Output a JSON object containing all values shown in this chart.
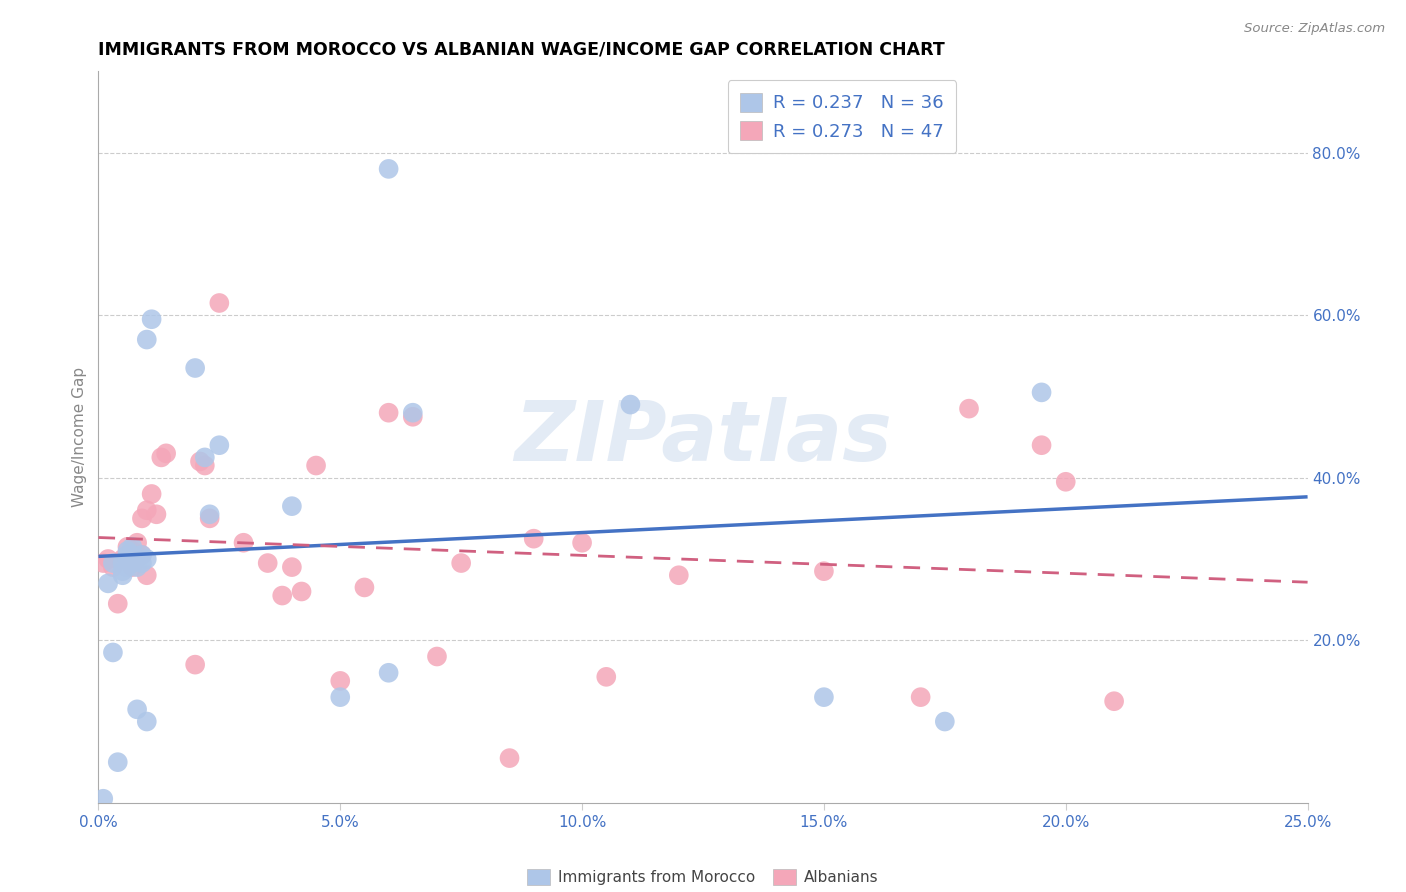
{
  "title": "IMMIGRANTS FROM MOROCCO VS ALBANIAN WAGE/INCOME GAP CORRELATION CHART",
  "source": "Source: ZipAtlas.com",
  "ylabel": "Wage/Income Gap",
  "ytick_vals": [
    0.2,
    0.4,
    0.6,
    0.8
  ],
  "ytick_labels": [
    "20.0%",
    "40.0%",
    "60.0%",
    "80.0%"
  ],
  "xtick_vals": [
    0.0,
    0.05,
    0.1,
    0.15,
    0.2,
    0.25
  ],
  "xtick_labels": [
    "0.0%",
    "5.0%",
    "10.0%",
    "15.0%",
    "20.0%",
    "25.0%"
  ],
  "legend_label1": "Immigrants from Morocco",
  "legend_label2": "Albanians",
  "legend_R1": "R = 0.237",
  "legend_N1": "N = 36",
  "legend_R2": "R = 0.273",
  "legend_N2": "N = 47",
  "color_blue": "#aec6e8",
  "color_pink": "#f4a7b9",
  "line_blue": "#4472c4",
  "line_pink": "#d06080",
  "watermark": "ZIPatlas",
  "blue_x": [
    0.001,
    0.002,
    0.003,
    0.003,
    0.004,
    0.005,
    0.005,
    0.005,
    0.006,
    0.006,
    0.006,
    0.006,
    0.007,
    0.007,
    0.007,
    0.008,
    0.008,
    0.009,
    0.009,
    0.01,
    0.01,
    0.01,
    0.011,
    0.02,
    0.022,
    0.023,
    0.025,
    0.04,
    0.05,
    0.06,
    0.06,
    0.065,
    0.11,
    0.15,
    0.175,
    0.195
  ],
  "blue_y": [
    0.005,
    0.27,
    0.185,
    0.295,
    0.05,
    0.28,
    0.285,
    0.295,
    0.29,
    0.3,
    0.305,
    0.31,
    0.295,
    0.305,
    0.315,
    0.115,
    0.29,
    0.295,
    0.305,
    0.1,
    0.3,
    0.57,
    0.595,
    0.535,
    0.425,
    0.355,
    0.44,
    0.365,
    0.13,
    0.16,
    0.78,
    0.48,
    0.49,
    0.13,
    0.1,
    0.505
  ],
  "pink_x": [
    0.001,
    0.002,
    0.003,
    0.004,
    0.005,
    0.006,
    0.006,
    0.007,
    0.007,
    0.008,
    0.008,
    0.009,
    0.009,
    0.01,
    0.01,
    0.011,
    0.012,
    0.013,
    0.014,
    0.02,
    0.021,
    0.022,
    0.023,
    0.025,
    0.03,
    0.035,
    0.038,
    0.04,
    0.042,
    0.045,
    0.05,
    0.055,
    0.06,
    0.065,
    0.07,
    0.075,
    0.085,
    0.09,
    0.1,
    0.105,
    0.12,
    0.15,
    0.17,
    0.18,
    0.195,
    0.2,
    0.21
  ],
  "pink_y": [
    0.295,
    0.3,
    0.29,
    0.245,
    0.3,
    0.305,
    0.315,
    0.29,
    0.31,
    0.3,
    0.32,
    0.305,
    0.35,
    0.36,
    0.28,
    0.38,
    0.355,
    0.425,
    0.43,
    0.17,
    0.42,
    0.415,
    0.35,
    0.615,
    0.32,
    0.295,
    0.255,
    0.29,
    0.26,
    0.415,
    0.15,
    0.265,
    0.48,
    0.475,
    0.18,
    0.295,
    0.055,
    0.325,
    0.32,
    0.155,
    0.28,
    0.285,
    0.13,
    0.485,
    0.44,
    0.395,
    0.125
  ]
}
